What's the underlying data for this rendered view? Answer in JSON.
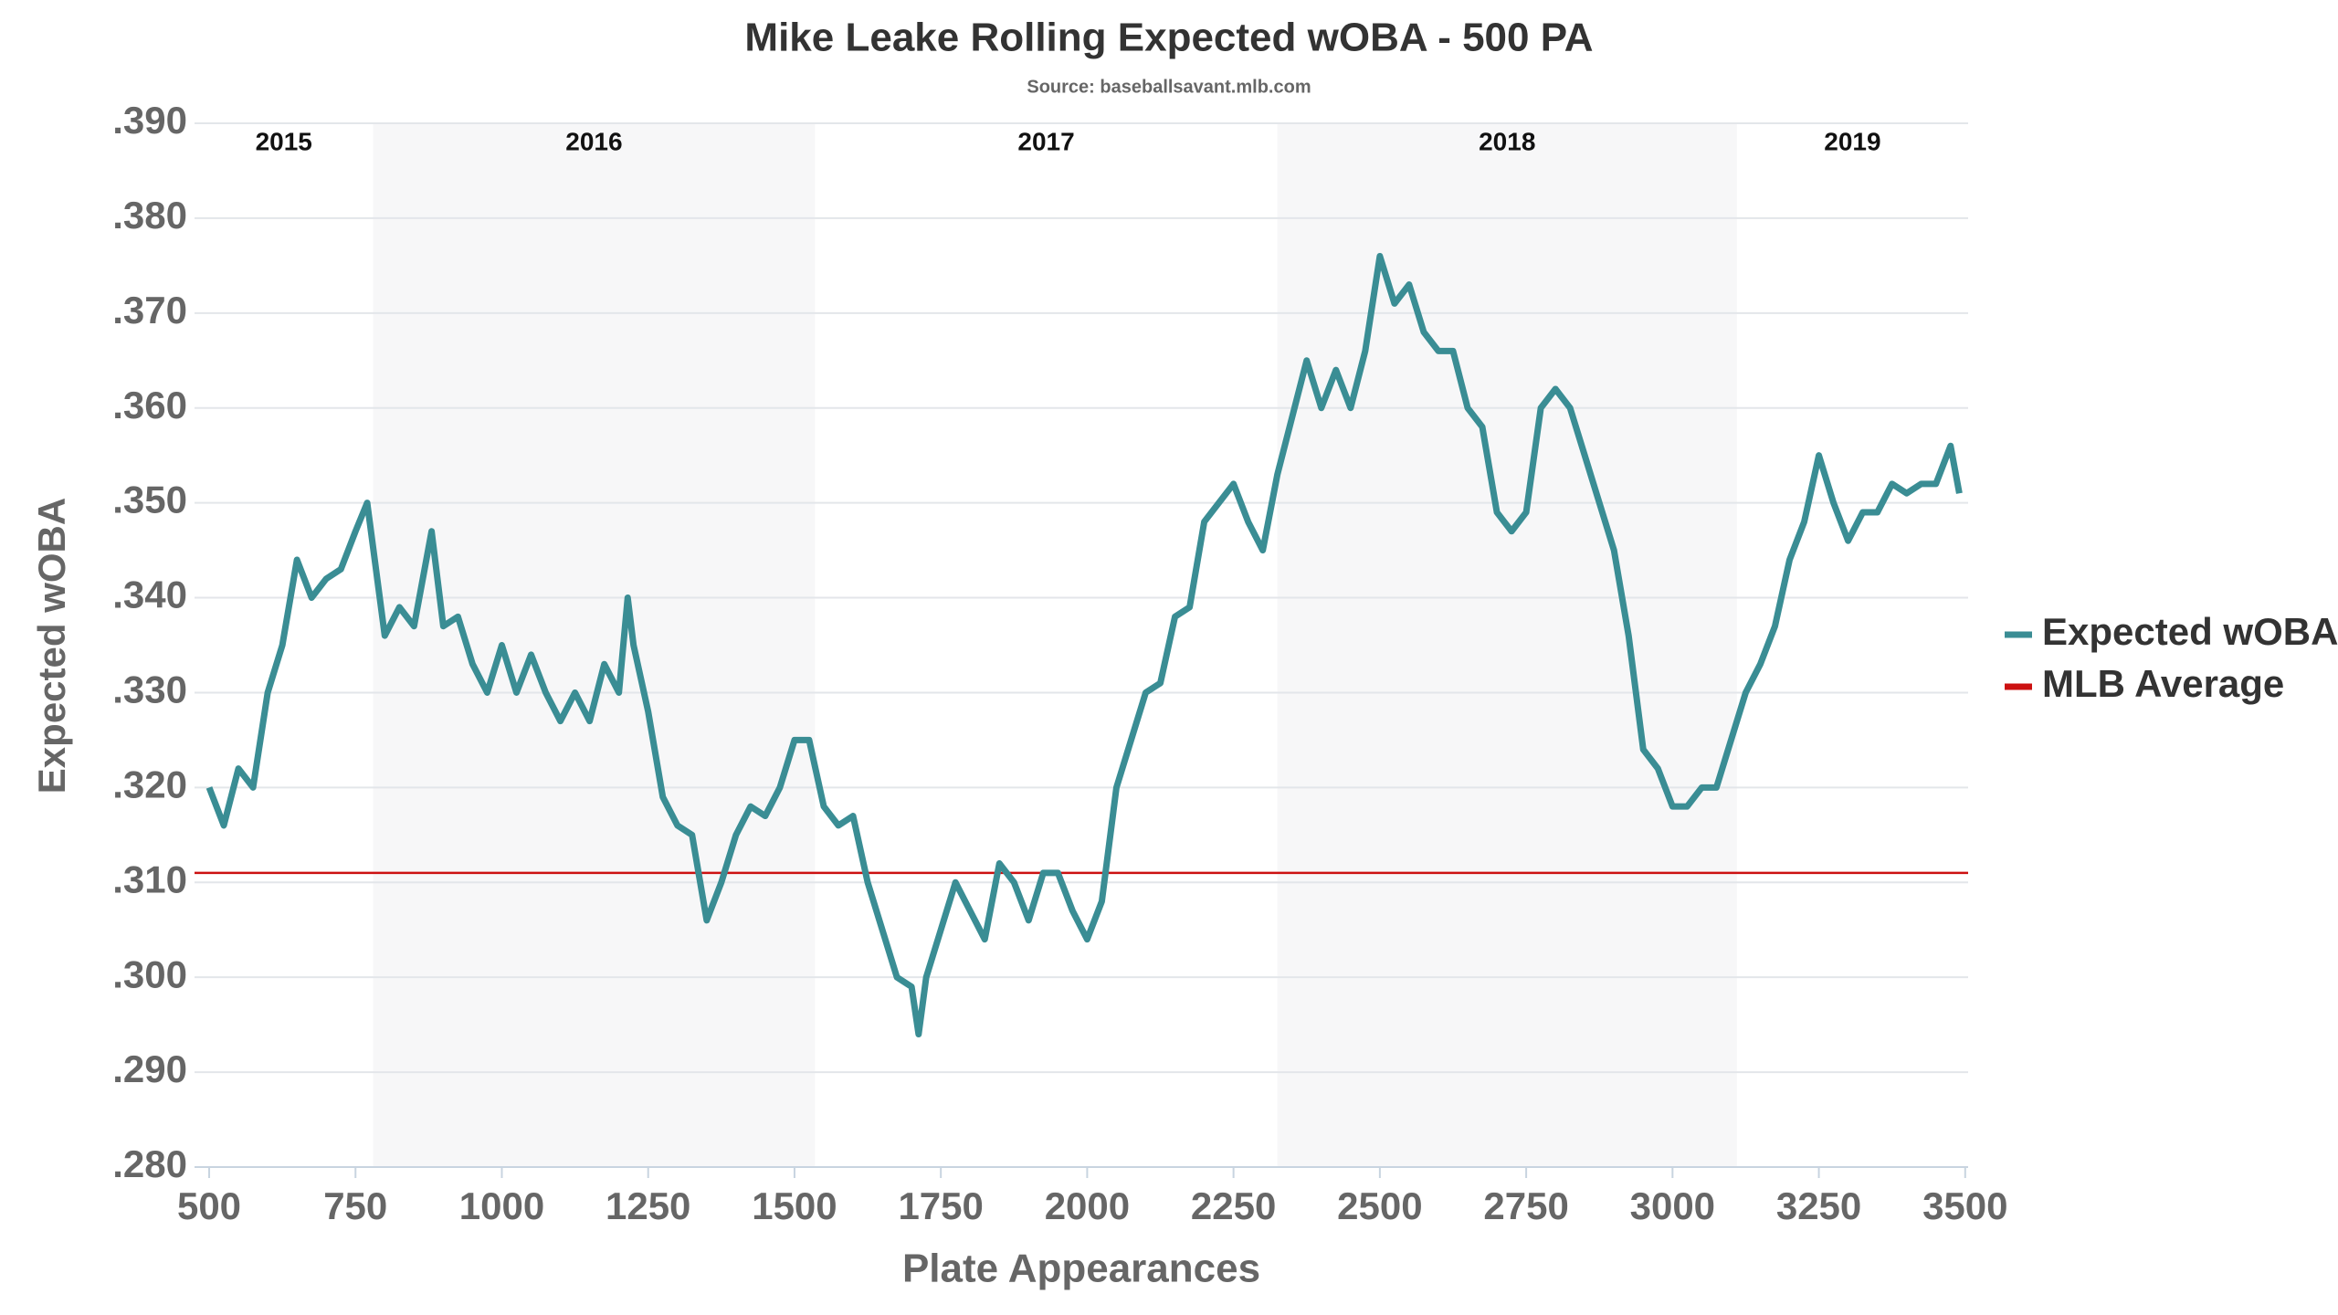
{
  "chart_data": {
    "type": "line",
    "title": "Mike Leake Rolling Expected wOBA - 500 PA",
    "subtitle": "Source: baseballsavant.mlb.com",
    "x_label": "Plate Appearances",
    "y_label": "Expected wOBA",
    "xlim": [
      475,
      3505
    ],
    "ylim": [
      0.28,
      0.39
    ],
    "xticks": [
      500,
      750,
      1000,
      1250,
      1500,
      1750,
      2000,
      2250,
      2500,
      2750,
      3000,
      3250,
      3500
    ],
    "yticks": [
      {
        "value": 0.28,
        "label": ".280"
      },
      {
        "value": 0.29,
        "label": ".290"
      },
      {
        "value": 0.3,
        "label": ".300"
      },
      {
        "value": 0.31,
        "label": ".310"
      },
      {
        "value": 0.32,
        "label": ".320"
      },
      {
        "value": 0.33,
        "label": ".330"
      },
      {
        "value": 0.34,
        "label": ".340"
      },
      {
        "value": 0.35,
        "label": ".350"
      },
      {
        "value": 0.36,
        "label": ".360"
      },
      {
        "value": 0.37,
        "label": ".370"
      },
      {
        "value": 0.38,
        "label": ".380"
      },
      {
        "value": 0.39,
        "label": ".390"
      }
    ],
    "grid": true,
    "legend": "right",
    "seasons": [
      {
        "label": "2015",
        "start": 475,
        "end": 780,
        "shaded": false
      },
      {
        "label": "2016",
        "start": 780,
        "end": 1535,
        "shaded": true
      },
      {
        "label": "2017",
        "start": 1535,
        "end": 2325,
        "shaded": false
      },
      {
        "label": "2018",
        "start": 2325,
        "end": 3110,
        "shaded": true
      },
      {
        "label": "2019",
        "start": 3110,
        "end": 3505,
        "shaded": false
      }
    ],
    "x": [
      500,
      525,
      550,
      575,
      600,
      625,
      650,
      675,
      700,
      725,
      750,
      770,
      800,
      825,
      850,
      880,
      900,
      925,
      950,
      975,
      1000,
      1025,
      1050,
      1075,
      1100,
      1125,
      1150,
      1175,
      1200,
      1215,
      1225,
      1250,
      1275,
      1300,
      1325,
      1350,
      1375,
      1400,
      1425,
      1450,
      1475,
      1500,
      1525,
      1550,
      1575,
      1600,
      1625,
      1650,
      1675,
      1700,
      1712,
      1725,
      1750,
      1775,
      1800,
      1825,
      1850,
      1875,
      1900,
      1925,
      1950,
      1975,
      2000,
      2025,
      2050,
      2075,
      2100,
      2125,
      2150,
      2175,
      2200,
      2225,
      2250,
      2275,
      2300,
      2325,
      2350,
      2375,
      2400,
      2425,
      2450,
      2475,
      2500,
      2525,
      2550,
      2575,
      2600,
      2625,
      2650,
      2675,
      2700,
      2725,
      2750,
      2775,
      2800,
      2825,
      2850,
      2875,
      2900,
      2925,
      2950,
      2975,
      3000,
      3025,
      3050,
      3075,
      3100,
      3125,
      3150,
      3175,
      3200,
      3225,
      3250,
      3275,
      3300,
      3325,
      3350,
      3375,
      3400,
      3425,
      3450,
      3475,
      3490
    ],
    "series": [
      {
        "name": "Expected wOBA",
        "color": "#3a8d94",
        "values": [
          0.32,
          0.316,
          0.322,
          0.32,
          0.33,
          0.335,
          0.344,
          0.34,
          0.342,
          0.343,
          0.347,
          0.35,
          0.336,
          0.339,
          0.337,
          0.347,
          0.337,
          0.338,
          0.333,
          0.33,
          0.335,
          0.33,
          0.334,
          0.33,
          0.327,
          0.33,
          0.327,
          0.333,
          0.33,
          0.34,
          0.335,
          0.328,
          0.319,
          0.316,
          0.315,
          0.306,
          0.31,
          0.315,
          0.318,
          0.317,
          0.32,
          0.325,
          0.325,
          0.318,
          0.316,
          0.317,
          0.31,
          0.305,
          0.3,
          0.299,
          0.294,
          0.3,
          0.305,
          0.31,
          0.307,
          0.304,
          0.312,
          0.31,
          0.306,
          0.311,
          0.311,
          0.307,
          0.304,
          0.308,
          0.32,
          0.325,
          0.33,
          0.331,
          0.338,
          0.339,
          0.348,
          0.35,
          0.352,
          0.348,
          0.345,
          0.353,
          0.359,
          0.365,
          0.36,
          0.364,
          0.36,
          0.366,
          0.376,
          0.371,
          0.373,
          0.368,
          0.366,
          0.366,
          0.36,
          0.358,
          0.349,
          0.347,
          0.349,
          0.36,
          0.362,
          0.36,
          0.355,
          0.35,
          0.345,
          0.336,
          0.324,
          0.322,
          0.318,
          0.318,
          0.32,
          0.32,
          0.325,
          0.33,
          0.333,
          0.337,
          0.344,
          0.348,
          0.355,
          0.35,
          0.346,
          0.349,
          0.349,
          0.352,
          0.351,
          0.352,
          0.352,
          0.356,
          0.351
        ]
      }
    ],
    "reference_lines": [
      {
        "name": "MLB Average",
        "color": "#cc1111",
        "value": 0.311
      }
    ]
  }
}
